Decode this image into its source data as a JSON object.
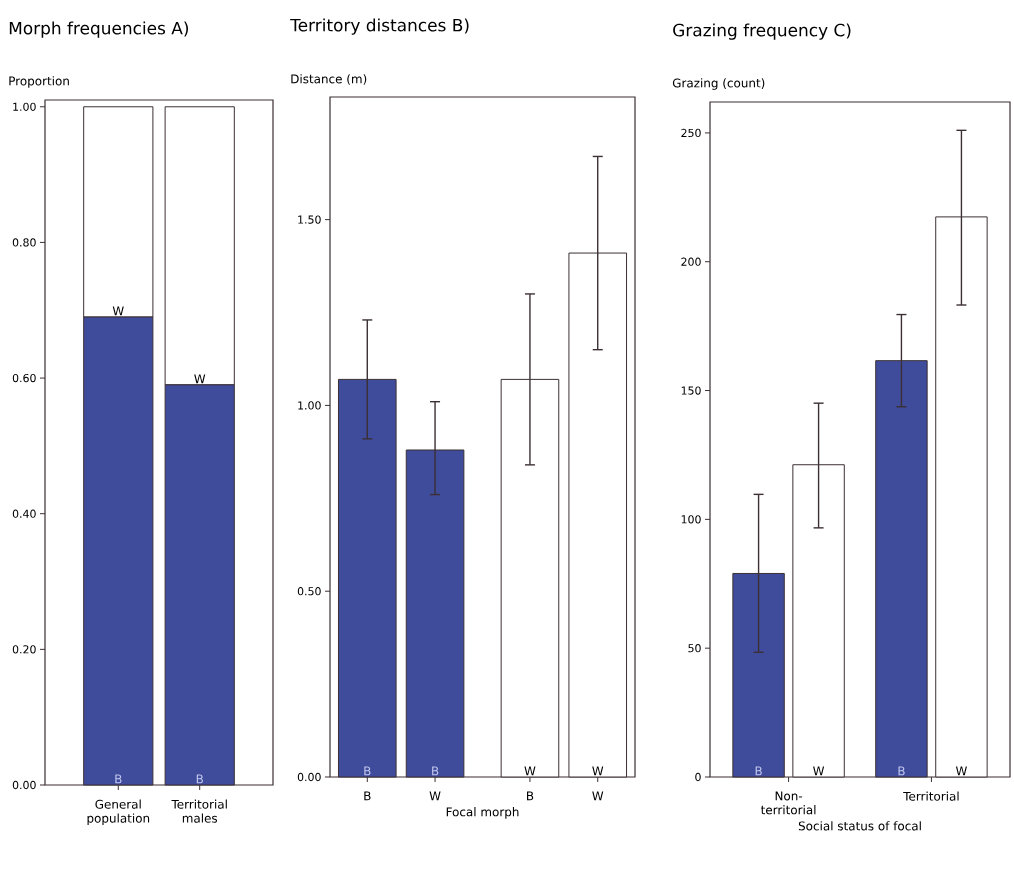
{
  "chart_data": [
    {
      "type": "bar",
      "title": "Morph frequencies A)",
      "ylabel": "Proportion",
      "categories": [
        "General population",
        "Territorial males"
      ],
      "stacked": true,
      "series": [
        {
          "name": "B",
          "color": "#3f4c9c",
          "values": [
            0.69,
            0.59
          ]
        },
        {
          "name": "W",
          "color": "#ffffff",
          "values": [
            0.31,
            0.41
          ]
        }
      ],
      "ylim": [
        0,
        1.01
      ],
      "yticks": [
        {
          "value": 0,
          "label": "0.00"
        },
        {
          "value": 0.2,
          "label": "0.20"
        },
        {
          "value": 0.4,
          "label": "0.40"
        },
        {
          "value": 0.6,
          "label": "0.60"
        },
        {
          "value": 0.8,
          "label": "0.80"
        },
        {
          "value": 1,
          "label": "1.00"
        }
      ]
    },
    {
      "type": "bar",
      "title": "Territory distances B)",
      "ylabel": "Distance (m)",
      "xlabel": "Focal morph",
      "categories": [
        "B",
        "W",
        "B",
        "W"
      ],
      "series": [
        {
          "name": "B",
          "color": "#3f4c9c",
          "values": [
            1.07,
            0.88,
            null,
            null
          ],
          "errors": [
            [
              0.91,
              1.23
            ],
            [
              0.76,
              1.01
            ],
            null,
            null
          ]
        },
        {
          "name": "W",
          "color": "#ffffff",
          "values": [
            null,
            null,
            1.07,
            1.41
          ],
          "errors": [
            null,
            null,
            [
              0.84,
              1.3
            ],
            [
              1.15,
              1.67
            ]
          ]
        }
      ],
      "ylim": [
        0,
        1.83
      ],
      "yticks": [
        {
          "value": 0,
          "label": "0.00"
        },
        {
          "value": 0.5,
          "label": "0.50"
        },
        {
          "value": 1,
          "label": "1.00"
        },
        {
          "value": 1.5,
          "label": "1.50"
        }
      ]
    },
    {
      "type": "bar",
      "title": "Grazing frequency C)",
      "ylabel": "Grazing (count)",
      "xlabel": "Social status of focal",
      "categories": [
        "Non-territorial",
        "Territorial"
      ],
      "series": [
        {
          "name": "B",
          "color": "#3f4c9c",
          "values": [
            79,
            161.6
          ],
          "errors": [
            [
              48.4,
              109.7
            ],
            [
              143.7,
              179.5
            ]
          ]
        },
        {
          "name": "W",
          "color": "#ffffff",
          "values": [
            121.2,
            217.4
          ],
          "errors": [
            [
              96.7,
              145.1
            ],
            [
              183.2,
              251
            ]
          ]
        }
      ],
      "ylim": [
        0,
        262
      ],
      "yticks": [
        0,
        50,
        100,
        150,
        200,
        250
      ]
    }
  ]
}
